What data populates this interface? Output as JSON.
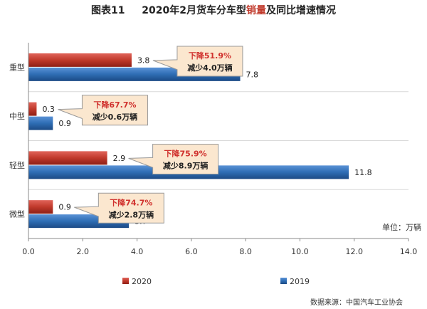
{
  "title": {
    "prefix": "图表11",
    "main_before": "2020年2月货车分车型",
    "main_highlight": "销量",
    "main_after": "及同比增速情况"
  },
  "source": "数据来源：中国汽车工业协会",
  "colors": {
    "s2020": "#c0392b",
    "s2019": "#2e6db4",
    "callout_fill": "#fbe7cf",
    "callout_border": "#999999",
    "red_text": "#d0312d"
  },
  "chart_data": {
    "type": "bar",
    "orientation": "horizontal",
    "categories": [
      "重型",
      "中型",
      "轻型",
      "微型"
    ],
    "series": [
      {
        "name": "2020",
        "values": [
          3.8,
          0.3,
          2.9,
          0.9
        ]
      },
      {
        "name": "2019",
        "values": [
          7.8,
          0.9,
          11.8,
          3.7
        ]
      }
    ],
    "xlim": [
      0,
      14
    ],
    "xticks": [
      "0.0",
      "2.0",
      "4.0",
      "6.0",
      "8.0",
      "10.0",
      "12.0",
      "14.0"
    ],
    "value_labels": {
      "2020": [
        "3.8",
        "0.3",
        "2.9",
        "0.9"
      ],
      "2019": [
        "7.8",
        "0.9",
        "11.8",
        "3.7"
      ]
    },
    "unit_label": "单位：万辆",
    "grid": true,
    "legend": "bottom",
    "annotations": [
      {
        "category": "重型",
        "line1": "下降51.9%",
        "line2": "减少4.0万辆"
      },
      {
        "category": "中型",
        "line1": "下降67.7%",
        "line2": "减少0.6万辆"
      },
      {
        "category": "轻型",
        "line1": "下降75.9%",
        "line2": "减少8.9万辆"
      },
      {
        "category": "微型",
        "line1": "下降74.7%",
        "line2": "减少2.8万辆"
      }
    ]
  }
}
